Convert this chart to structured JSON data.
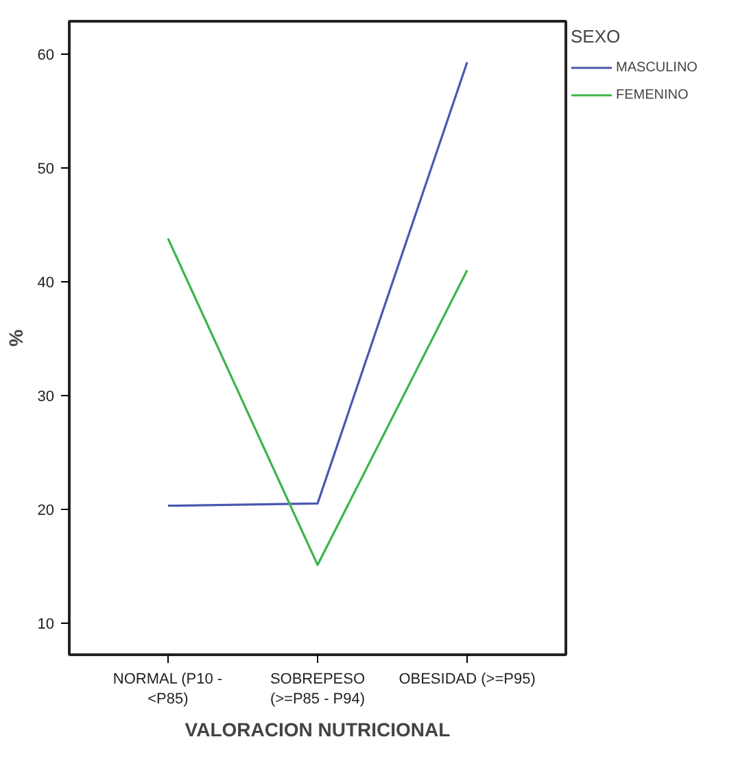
{
  "chart_data": {
    "type": "line",
    "xlabel": "VALORACION NUTRICIONAL",
    "ylabel": "%",
    "legend_title": "SEXO",
    "legend": "top right",
    "grid": false,
    "marker": "none",
    "line_style": "solid",
    "categories": [
      "NORMAL (P10 -\n<P85)",
      "SOBREPESO\n(>=P85 - P94)",
      "OBESIDAD (>=P95)"
    ],
    "ylim": [
      7.2,
      62.9
    ],
    "yticks": [
      10,
      20,
      30,
      40,
      50,
      60
    ],
    "series": [
      {
        "name": "MASCULINO",
        "color": "#4a58b0",
        "values": [
          20.3,
          20.5,
          59.3
        ]
      },
      {
        "name": "FEMENINO",
        "color": "#3cb44a",
        "values": [
          43.8,
          15.1,
          41.0
        ]
      }
    ]
  }
}
